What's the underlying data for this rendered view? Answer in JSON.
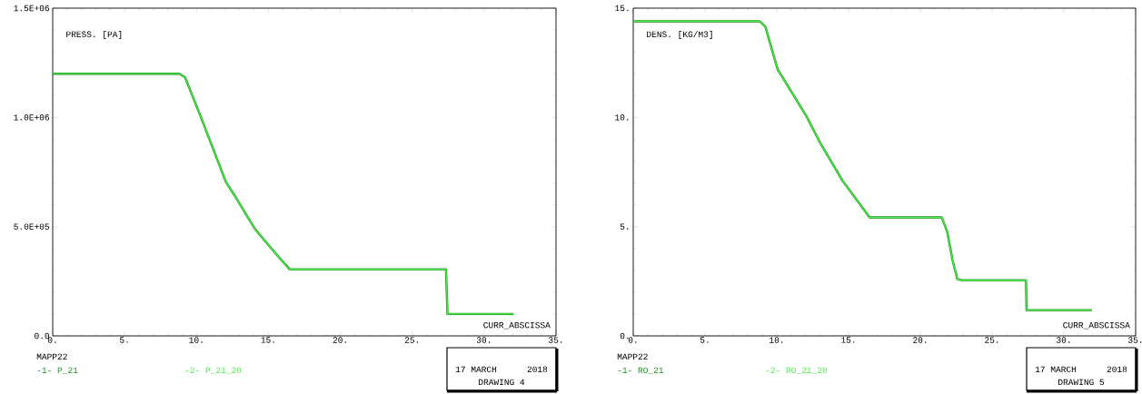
{
  "chart_data": [
    {
      "type": "line",
      "xlabel": "CURR_ABSCISSA",
      "ylabel": "PRESS. [PA]",
      "legend": "bottom",
      "x": [
        0,
        8.8,
        9.2,
        10.29,
        12.05,
        12.69,
        14.08,
        15.59,
        16.48,
        27.35,
        27.45,
        32.05
      ],
      "series": [
        {
          "name": "-1- P_21",
          "color": "#1e8c1e",
          "values": [
            1200000,
            1200000,
            1184000,
            1004000,
            704000,
            638000,
            488000,
            371000,
            305000,
            305000,
            100000,
            100000
          ]
        },
        {
          "name": "-2- P_21_20",
          "color": "#44ee44",
          "values": [
            1200000,
            1200000,
            1184000,
            1004000,
            704000,
            638000,
            488000,
            371000,
            305000,
            305000,
            100000,
            100000
          ]
        }
      ],
      "xlim": [
        0,
        35
      ],
      "ylim": [
        0,
        1500000
      ],
      "xticks": [
        {
          "value": 0,
          "label": "0."
        },
        {
          "value": 5,
          "label": "5."
        },
        {
          "value": 10,
          "label": "10."
        },
        {
          "value": 15,
          "label": "15."
        },
        {
          "value": 20,
          "label": "20."
        },
        {
          "value": 25,
          "label": "25."
        },
        {
          "value": 30,
          "label": "30."
        },
        {
          "value": 35,
          "label": "35."
        }
      ],
      "yticks": [
        {
          "value": 0,
          "label": "0.0"
        },
        {
          "value": 500000,
          "label": "5.0E+05"
        },
        {
          "value": 1000000,
          "label": "1.0E+06"
        },
        {
          "value": 1500000,
          "label": "1.5E+06"
        }
      ],
      "annotations": [
        "MAPP22",
        "17 MARCH",
        "2018",
        "DRAWING 4"
      ]
    },
    {
      "type": "line",
      "xlabel": "CURR_ABSCISSA",
      "ylabel": "DENS. [KG/M3]",
      "legend": "bottom",
      "x": [
        0,
        8.8,
        9.2,
        10.06,
        12.07,
        12.97,
        14.58,
        16.47,
        21.5,
        21.88,
        22.25,
        22.58,
        22.88,
        27.36,
        27.4,
        31.95
      ],
      "series": [
        {
          "name": "-1- RO_21",
          "color": "#1e8c1e",
          "values": [
            14.4,
            14.4,
            14.15,
            12.2,
            10.05,
            8.9,
            7.1,
            5.42,
            5.42,
            4.75,
            3.45,
            2.6,
            2.55,
            2.55,
            1.18,
            1.18
          ]
        },
        {
          "name": "-2- RO_21_20",
          "color": "#44ee44",
          "values": [
            14.4,
            14.4,
            14.15,
            12.2,
            10.05,
            8.9,
            7.1,
            5.42,
            5.42,
            4.75,
            3.45,
            2.6,
            2.55,
            2.55,
            1.18,
            1.18
          ]
        }
      ],
      "xlim": [
        0,
        35
      ],
      "ylim": [
        0,
        15
      ],
      "xticks": [
        {
          "value": 0,
          "label": "0."
        },
        {
          "value": 5,
          "label": "5."
        },
        {
          "value": 10,
          "label": "10."
        },
        {
          "value": 15,
          "label": "15."
        },
        {
          "value": 20,
          "label": "20."
        },
        {
          "value": 25,
          "label": "25."
        },
        {
          "value": 30,
          "label": "30."
        },
        {
          "value": 35,
          "label": "35."
        }
      ],
      "yticks": [
        {
          "value": 0,
          "label": "0."
        },
        {
          "value": 5,
          "label": "5."
        },
        {
          "value": 10,
          "label": "10."
        },
        {
          "value": 15,
          "label": "15."
        }
      ],
      "annotations": [
        "MAPP22",
        "17 MARCH",
        "2018",
        "DRAWING 5"
      ]
    }
  ]
}
